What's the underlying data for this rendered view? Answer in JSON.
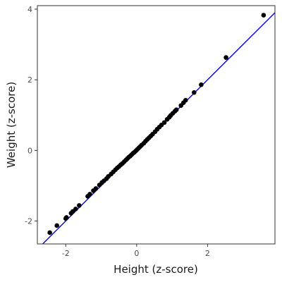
{
  "chart_data": {
    "type": "scatter",
    "title": "",
    "xlabel": "Height (z-score)",
    "ylabel": "Weight (z-score)",
    "xlim": [
      -2.8,
      3.9
    ],
    "ylim": [
      -2.65,
      4.1
    ],
    "x_ticks": [
      -2,
      0,
      2
    ],
    "y_ticks": [
      -2,
      0,
      2,
      4
    ],
    "x_tick_labels": [
      "-2",
      "0",
      "2"
    ],
    "y_tick_labels": [
      "-2",
      "0",
      "2",
      "4"
    ],
    "grid": false,
    "legend": "none",
    "point_color": "#000000",
    "line_color": "#0000ff",
    "reference_line": {
      "slope": 1.0,
      "intercept": 0.0
    },
    "points": [
      [
        -2.45,
        -2.33
      ],
      [
        -2.25,
        -2.13
      ],
      [
        -2.0,
        -1.93
      ],
      [
        -1.98,
        -1.9
      ],
      [
        -1.85,
        -1.78
      ],
      [
        -1.8,
        -1.73
      ],
      [
        -1.72,
        -1.66
      ],
      [
        -1.62,
        -1.56
      ],
      [
        -1.38,
        -1.3
      ],
      [
        -1.32,
        -1.24
      ],
      [
        -1.22,
        -1.14
      ],
      [
        -1.15,
        -1.08
      ],
      [
        -1.05,
        -0.98
      ],
      [
        -0.98,
        -0.91
      ],
      [
        -0.92,
        -0.86
      ],
      [
        -0.85,
        -0.8
      ],
      [
        -0.8,
        -0.74
      ],
      [
        -0.72,
        -0.67
      ],
      [
        -0.66,
        -0.61
      ],
      [
        -0.6,
        -0.55
      ],
      [
        -0.55,
        -0.5
      ],
      [
        -0.5,
        -0.46
      ],
      [
        -0.45,
        -0.41
      ],
      [
        -0.4,
        -0.37
      ],
      [
        -0.35,
        -0.32
      ],
      [
        -0.3,
        -0.27
      ],
      [
        -0.26,
        -0.23
      ],
      [
        -0.22,
        -0.19
      ],
      [
        -0.18,
        -0.16
      ],
      [
        -0.14,
        -0.12
      ],
      [
        -0.1,
        -0.08
      ],
      [
        -0.06,
        -0.05
      ],
      [
        -0.02,
        -0.01
      ],
      [
        0.02,
        0.03
      ],
      [
        0.06,
        0.07
      ],
      [
        0.1,
        0.11
      ],
      [
        0.14,
        0.15
      ],
      [
        0.2,
        0.2
      ],
      [
        0.25,
        0.26
      ],
      [
        0.3,
        0.31
      ],
      [
        0.35,
        0.36
      ],
      [
        0.4,
        0.41
      ],
      [
        0.45,
        0.46
      ],
      [
        0.52,
        0.53
      ],
      [
        0.58,
        0.6
      ],
      [
        0.64,
        0.66
      ],
      [
        0.7,
        0.72
      ],
      [
        0.78,
        0.79
      ],
      [
        0.86,
        0.88
      ],
      [
        0.92,
        0.94
      ],
      [
        0.96,
        0.99
      ],
      [
        1.02,
        1.05
      ],
      [
        1.08,
        1.11
      ],
      [
        1.12,
        1.15
      ],
      [
        1.25,
        1.27
      ],
      [
        1.32,
        1.35
      ],
      [
        1.38,
        1.42
      ],
      [
        1.62,
        1.64
      ],
      [
        1.82,
        1.86
      ],
      [
        2.52,
        2.63
      ],
      [
        3.58,
        3.83
      ]
    ]
  }
}
